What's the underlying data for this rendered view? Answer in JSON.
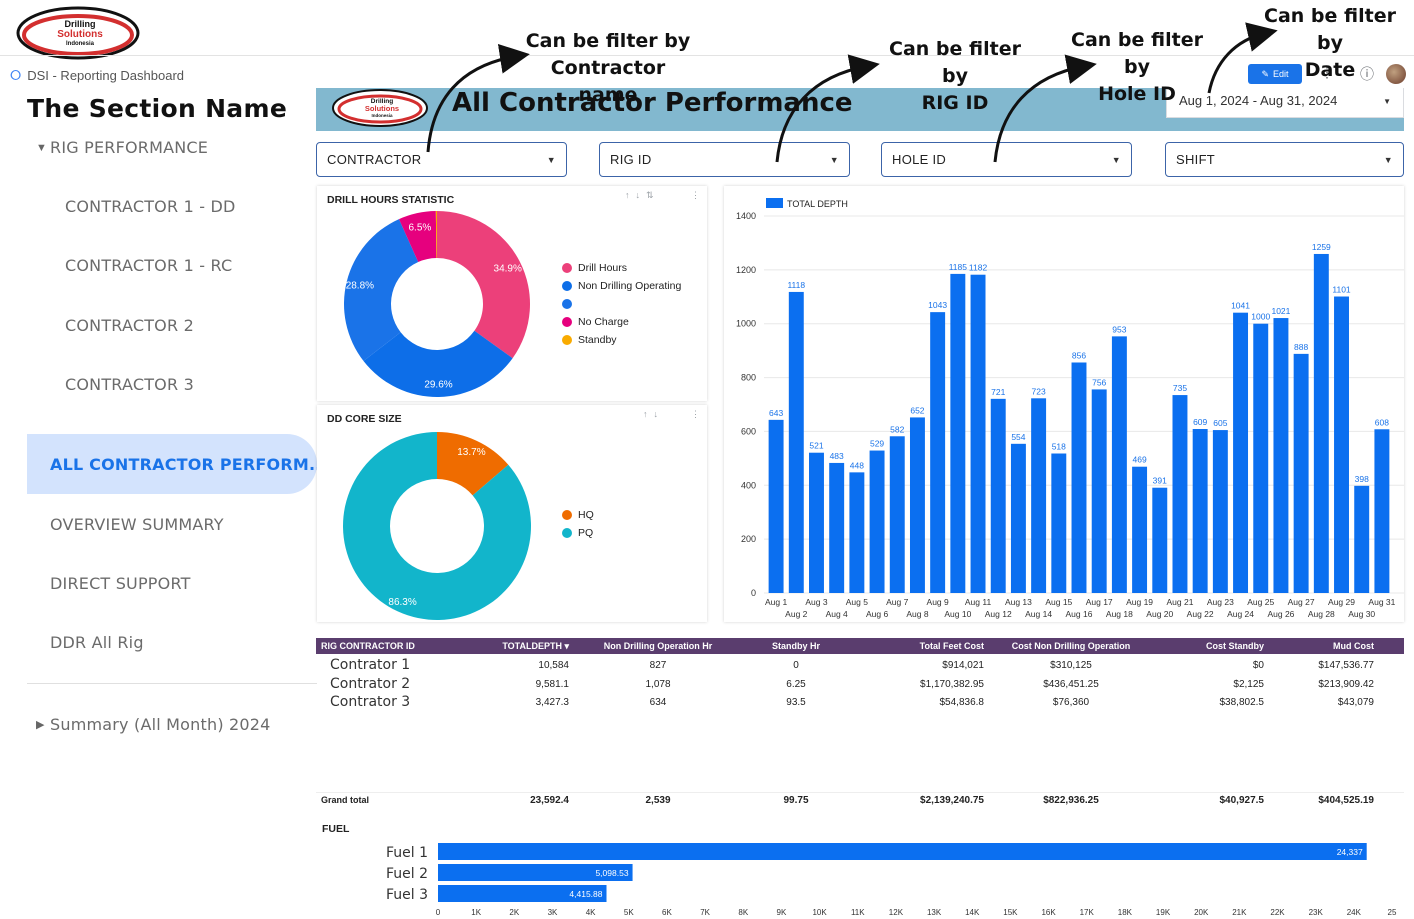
{
  "app": {
    "title": "DSI - Reporting Dashboard",
    "logo_text": [
      "Drilling",
      "Solutions",
      "Indonesia"
    ]
  },
  "sidebar": {
    "section_name": "The Section Name",
    "group_label": "RIG PERFORMANCE",
    "items": [
      {
        "label": "CONTRACTOR 1 - DD"
      },
      {
        "label": "CONTRACTOR 1 - RC"
      },
      {
        "label": "CONTRACTOR 2"
      },
      {
        "label": "CONTRACTOR 3"
      }
    ],
    "pages": [
      {
        "label": "ALL CONTRACTOR PERFORM..."
      },
      {
        "label": "OVERVIEW SUMMARY"
      },
      {
        "label": "DIRECT SUPPORT"
      },
      {
        "label": "DDR All Rig"
      }
    ],
    "summary_label": "Summary (All Month) 2024"
  },
  "header": {
    "title": "All Contractor Performance",
    "edit_label": "Edit",
    "date_range": "Aug 1, 2024 - Aug 31, 2024"
  },
  "filters": [
    {
      "label": "CONTRACTOR"
    },
    {
      "label": "RIG ID"
    },
    {
      "label": "HOLE ID"
    },
    {
      "label": "SHIFT"
    }
  ],
  "annotations": {
    "contractor": "Can be filter by\nContractor name",
    "rig": "Can be filter by\nRIG ID",
    "hole": "Can be filter by\nHole ID",
    "date": "Can be filter by\nDate"
  },
  "drill_hours": {
    "title": "DRILL HOURS STATISTIC",
    "slices": [
      {
        "name": "Drill Hours",
        "value": 34.9,
        "label": "34.9%",
        "color": "#ec407a"
      },
      {
        "name": "Non Drilling Operating",
        "value": 29.6,
        "label": "29.6%",
        "color": "#0d6ee8"
      },
      {
        "name": "",
        "value": 28.8,
        "label": "28.8%",
        "color": "#1a73e8"
      },
      {
        "name": "No Charge",
        "value": 6.5,
        "label": "6.5%",
        "color": "#e6007e"
      },
      {
        "name": "Standby",
        "value": 0.2,
        "label": "",
        "color": "#f9ab00"
      }
    ],
    "legend": [
      {
        "name": "Drill Hours",
        "color": "#ec407a"
      },
      {
        "name": "Non Drilling Operating",
        "color": "#0d6ee8"
      },
      {
        "name": "",
        "color": "#1a73e8"
      },
      {
        "name": "No Charge",
        "color": "#e6007e"
      },
      {
        "name": "Standby",
        "color": "#f9ab00"
      }
    ]
  },
  "core_size": {
    "title": "DD CORE SIZE",
    "slices": [
      {
        "name": "HQ",
        "value": 13.7,
        "label": "13.7%",
        "color": "#ef6c00"
      },
      {
        "name": "PQ",
        "value": 86.3,
        "label": "86.3%",
        "color": "#12b5cb"
      }
    ]
  },
  "chart_data": [
    {
      "type": "bar",
      "legend": "TOTAL DEPTH",
      "categories": [
        "Aug 1",
        "Aug 2",
        "Aug 3",
        "Aug 4",
        "Aug 5",
        "Aug 6",
        "Aug 7",
        "Aug 8",
        "Aug 9",
        "Aug 10",
        "Aug 11",
        "Aug 12",
        "Aug 13",
        "Aug 14",
        "Aug 15",
        "Aug 16",
        "Aug 17",
        "Aug 18",
        "Aug 19",
        "Aug 20",
        "Aug 21",
        "Aug 22",
        "Aug 23",
        "Aug 24",
        "Aug 25",
        "Aug 26",
        "Aug 27",
        "Aug 28",
        "Aug 29",
        "Aug 30",
        "Aug 31"
      ],
      "values": [
        643,
        1118,
        521,
        483,
        448,
        529,
        582,
        652,
        1043,
        1185,
        1182,
        721,
        554,
        723,
        518,
        856,
        756,
        953,
        469,
        391,
        735,
        609,
        605,
        1041,
        1000,
        1021,
        888,
        1259,
        1101,
        398,
        608
      ],
      "ylim": [
        0,
        1400
      ],
      "yticks": [
        "0",
        "200",
        "400",
        "600",
        "800",
        "1000",
        "1200",
        "1400"
      ],
      "color": "#0b6ff0"
    },
    {
      "type": "bar",
      "orientation": "horizontal",
      "title": "FUEL",
      "categories": [
        "Fuel 1",
        "Fuel 2",
        "Fuel 3"
      ],
      "values": [
        24337,
        5098.53,
        4415.88
      ],
      "labels": [
        "24,337",
        "5,098.53",
        "4,415.88"
      ],
      "xlim": [
        0,
        25000
      ],
      "xticks": [
        "0",
        "1K",
        "2K",
        "3K",
        "4K",
        "5K",
        "6K",
        "7K",
        "8K",
        "9K",
        "10K",
        "11K",
        "12K",
        "13K",
        "14K",
        "15K",
        "16K",
        "17K",
        "18K",
        "19K",
        "20K",
        "21K",
        "22K",
        "23K",
        "24K",
        "25"
      ],
      "color": "#0b6ff0"
    }
  ],
  "table": {
    "headers": [
      "RIG CONTRACTOR ID",
      "TOTALDEPTH",
      "Non Drilling Operation Hr",
      "Standby Hr",
      "Total Feet Cost",
      "Cost Non Drilling Operation",
      "Cost Standby",
      "Mud Cost"
    ],
    "sort_icon": "▾",
    "rows": [
      [
        "Contrator 1",
        "10,584",
        "827",
        "0",
        "$914,021",
        "$310,125",
        "$0",
        "$147,536.77"
      ],
      [
        "Contrator 2",
        "9,581.1",
        "1,078",
        "6.25",
        "$1,170,382.95",
        "$436,451.25",
        "$2,125",
        "$213,909.42"
      ],
      [
        "Contrator 3",
        "3,427.3",
        "634",
        "93.5",
        "$54,836.8",
        "$76,360",
        "$38,802.5",
        "$43,079"
      ]
    ],
    "total": [
      "Grand total",
      "23,592.4",
      "2,539",
      "99.75",
      "$2,139,240.75",
      "$822,936.25",
      "$40,927.5",
      "$404,525.19"
    ]
  }
}
